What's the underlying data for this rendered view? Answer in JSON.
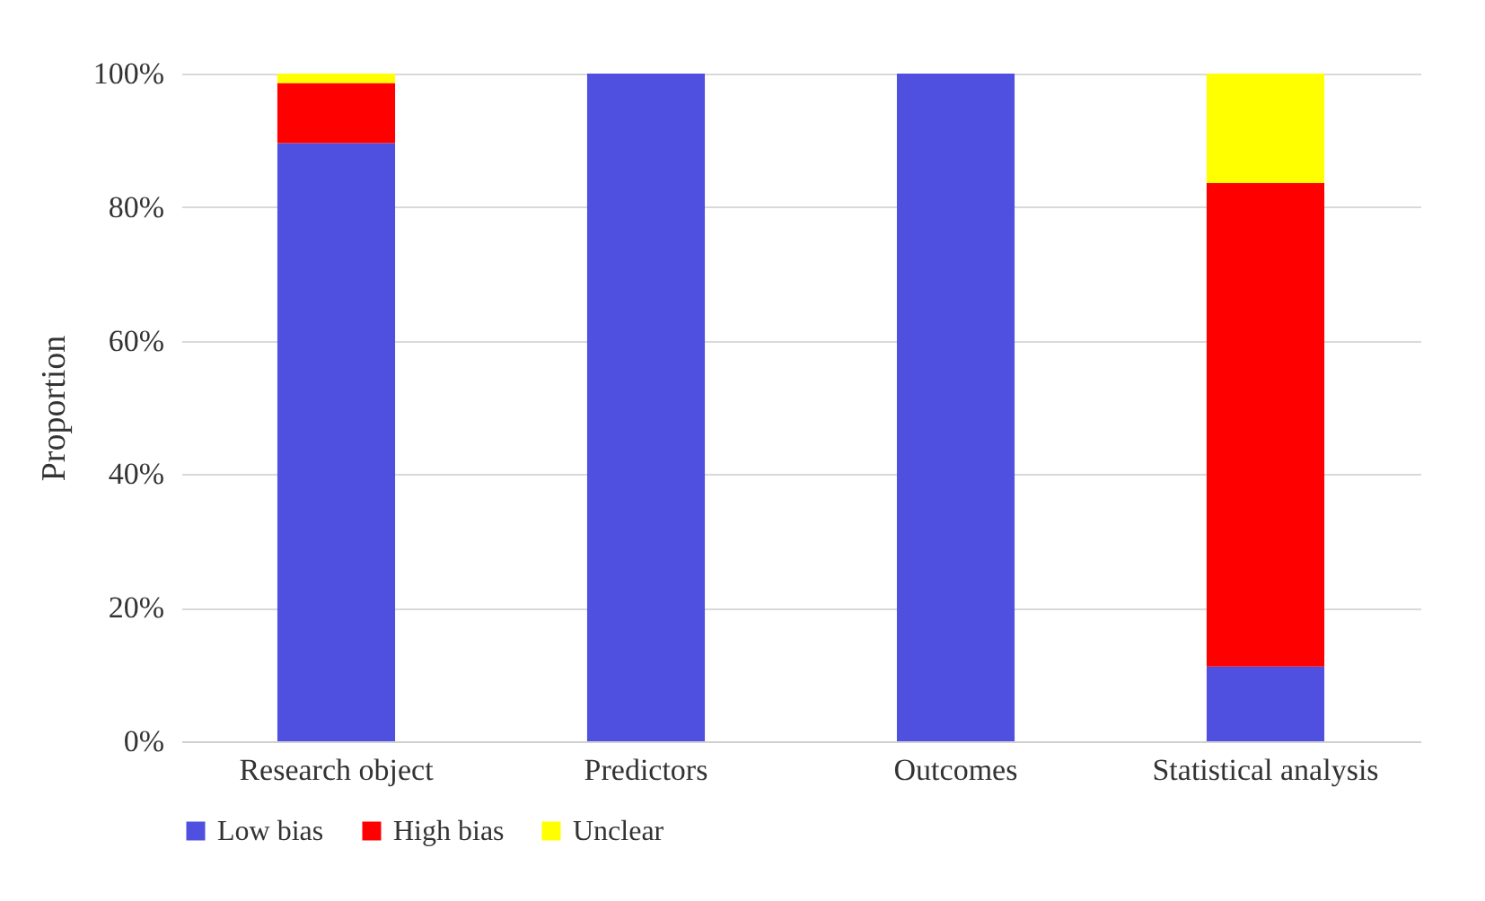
{
  "chart_data": {
    "type": "bar",
    "stacked": true,
    "ylabel": "Proportion",
    "categories": [
      "Research object",
      "Predictors",
      "Outcomes",
      "Statistical analysis"
    ],
    "series": [
      {
        "name": "Low bias",
        "color": "#4f4fe0",
        "values": [
          89.6,
          100,
          100,
          11.2
        ]
      },
      {
        "name": "High bias",
        "color": "#ff0000",
        "values": [
          9.0,
          0,
          0,
          72.4
        ]
      },
      {
        "name": "Unclear",
        "color": "#ffff00",
        "values": [
          1.4,
          0,
          0,
          16.4
        ]
      }
    ],
    "ylim": [
      0,
      100
    ],
    "yticks": [
      {
        "value": 0,
        "label": "0%"
      },
      {
        "value": 20,
        "label": "20%"
      },
      {
        "value": 40,
        "label": "40%"
      },
      {
        "value": 60,
        "label": "60%"
      },
      {
        "value": 80,
        "label": "80%"
      },
      {
        "value": 100,
        "label": "100%"
      }
    ],
    "grid": "y",
    "legend": "bottom"
  }
}
